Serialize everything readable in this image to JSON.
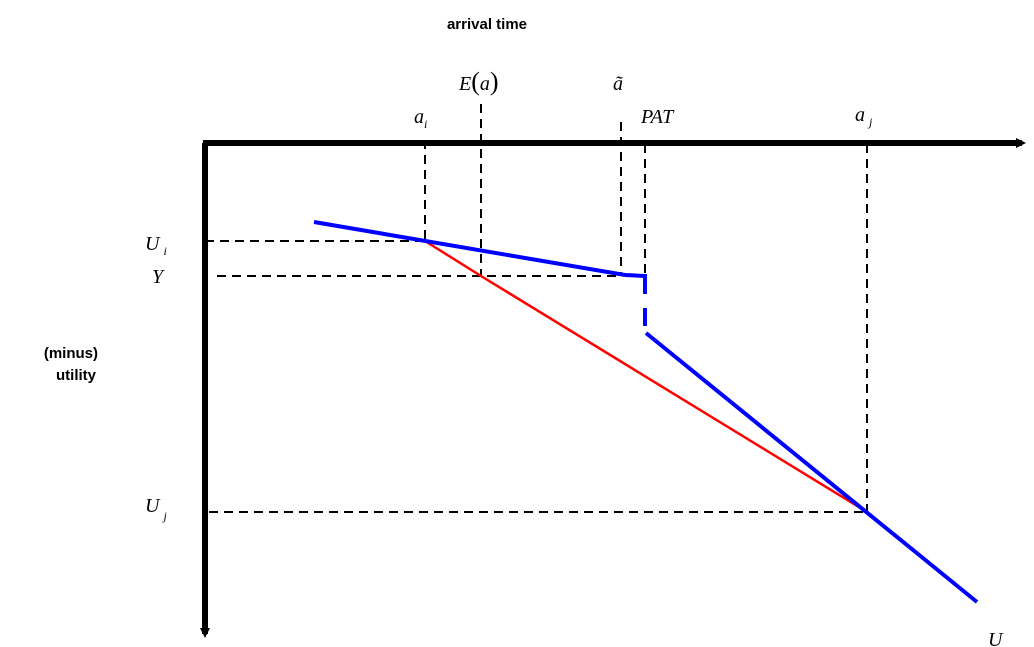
{
  "axes": {
    "x_title": "arrival time",
    "y_title_line1": "(minus)",
    "y_title_line2": "utility"
  },
  "x_labels": {
    "a_i_base": "a",
    "a_i_sub": "i",
    "expected_a_fn": "E",
    "expected_a_open": "(",
    "expected_a_var": "a",
    "expected_a_close": ")",
    "a_tilde": "ã",
    "pat": "PAT",
    "a_j_base": "a",
    "a_j_sub": "j"
  },
  "y_labels": {
    "u_i_base": "U",
    "u_i_sub": "i",
    "y": "Y",
    "u_j_base": "U",
    "u_j_sub": "j"
  },
  "curve_label": "U",
  "colors": {
    "axis": "#000000",
    "guide": "#000000",
    "utility_curve": "#0000ff",
    "chord": "#ff0000"
  }
}
